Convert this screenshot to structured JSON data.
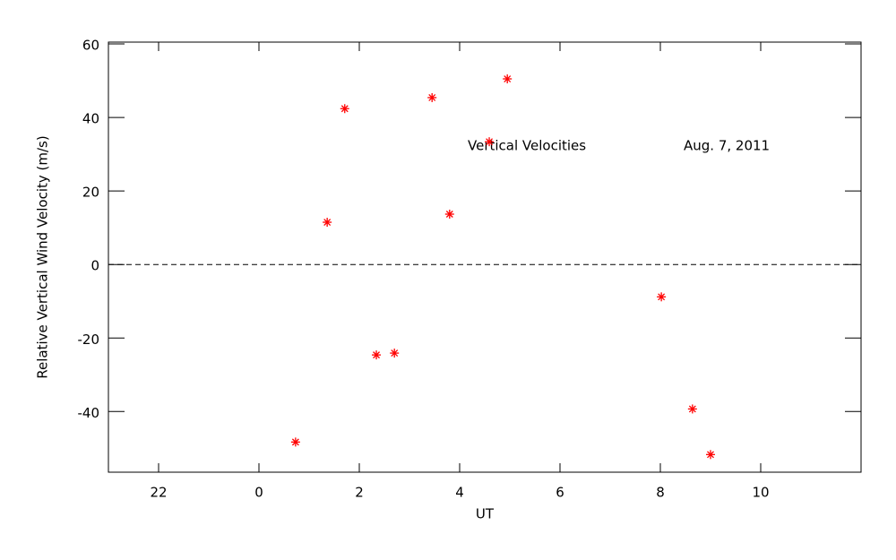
{
  "chart_data": {
    "type": "scatter",
    "x_label": "UT",
    "y_label": "Relative Vertical Wind Velocity (m/s)",
    "annotations": [
      "Vertical Velocities",
      "Aug. 7, 2011"
    ],
    "series": [
      {
        "color": "#ff0000",
        "x": [
          0.73,
          1.36,
          1.71,
          2.34,
          2.7,
          3.45,
          3.8,
          4.59,
          4.95,
          8.02,
          8.64,
          9.0
        ],
        "values": [
          -48.3,
          11.5,
          42.4,
          -24.6,
          -24.1,
          45.4,
          13.7,
          33.4,
          50.5,
          -8.8,
          -39.3,
          -51.7
        ]
      }
    ],
    "xlim": [
      -3,
      12
    ],
    "xticks": [
      {
        "value": -2,
        "label": "22"
      },
      0,
      2,
      4,
      6,
      8,
      10
    ],
    "ylim": [
      -56.5,
      60.5
    ],
    "yticks": [
      -40,
      -20,
      0,
      20,
      40,
      60
    ],
    "reference_line": 0
  }
}
